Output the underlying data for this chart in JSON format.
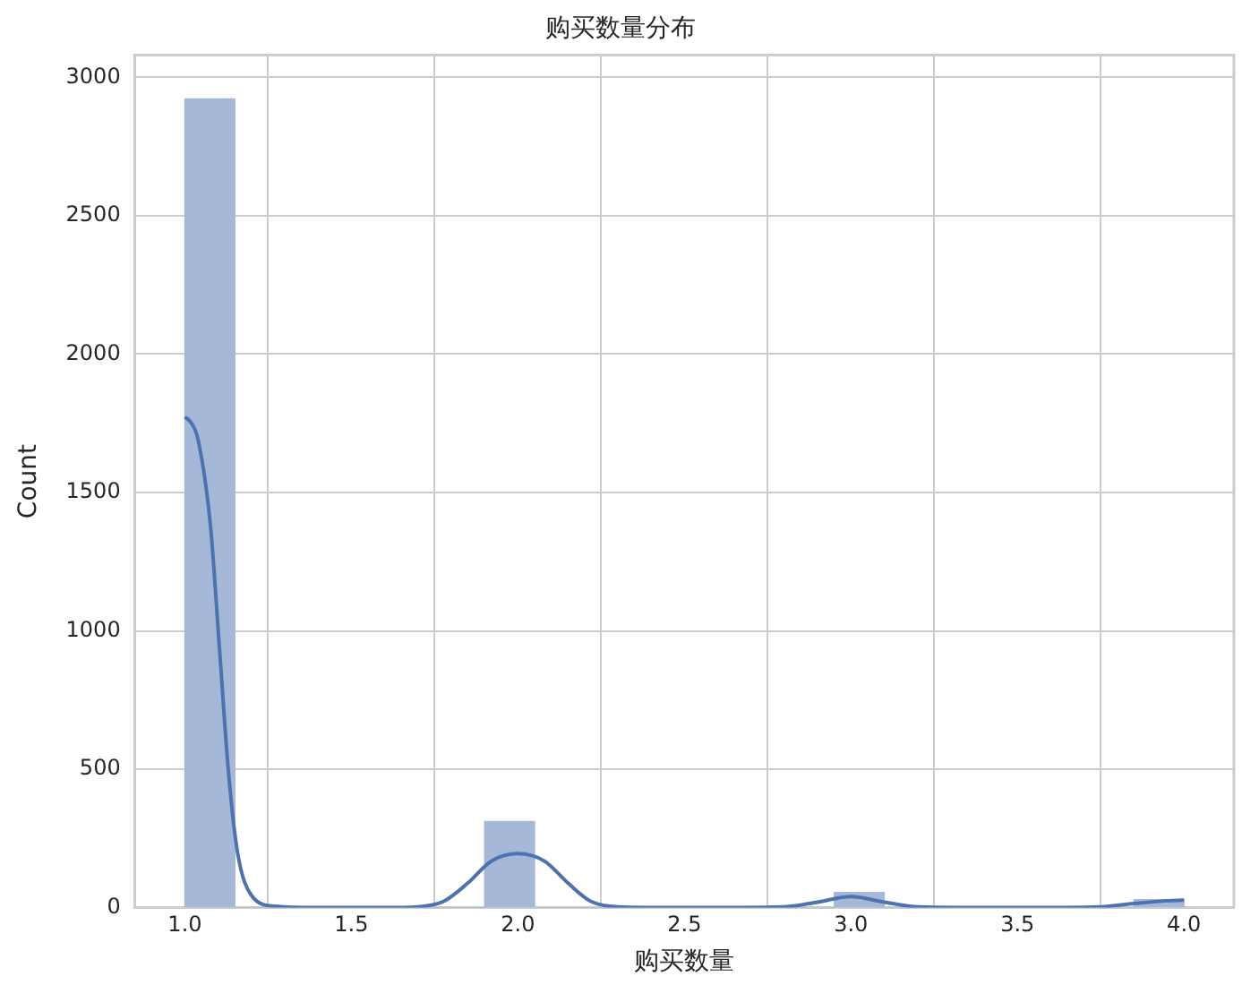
{
  "chart_data": {
    "type": "histogram",
    "title": "购买数量分布",
    "xlabel": "购买数量",
    "ylabel": "Count",
    "bins": [
      1.0,
      1.15,
      1.3,
      1.45,
      1.6,
      1.75,
      1.9,
      2.05,
      2.2,
      2.35,
      2.5,
      2.65,
      2.8,
      2.95,
      3.1,
      3.25,
      3.4,
      3.55,
      3.7,
      3.85,
      4.0
    ],
    "series": [
      {
        "color": "#a5b8d8",
        "values": [
          2922,
          0,
          0,
          0,
          0,
          0,
          311,
          0,
          0,
          0,
          0,
          0,
          0,
          55,
          0,
          0,
          0,
          0,
          0,
          29
        ]
      },
      {
        "type": "line",
        "color": "#4c72b0",
        "x": [
          1.0,
          1.02,
          1.04,
          1.077,
          1.104,
          1.131,
          1.158,
          1.2,
          1.27,
          1.4,
          1.6,
          1.7,
          1.776,
          1.85,
          1.92,
          2.0,
          2.08,
          2.15,
          2.22,
          2.3,
          2.5,
          2.8,
          2.9,
          3.0,
          3.1,
          3.2,
          3.5,
          3.75,
          3.85,
          3.95,
          4.0
        ],
        "values": [
          1773,
          1750,
          1689,
          1378,
          934,
          489,
          200,
          44,
          5,
          0,
          0,
          3,
          22,
          89,
          168,
          195,
          168,
          89,
          22,
          3,
          0,
          3,
          20,
          40,
          20,
          3,
          0,
          3,
          15,
          25,
          27
        ]
      }
    ],
    "xlim": [
      0.85,
      4.15
    ],
    "xticks": [
      {
        "value": 1,
        "label": "1.0"
      },
      {
        "value": 1.5,
        "label": "1.5"
      },
      {
        "value": 2,
        "label": "2.0"
      },
      {
        "value": 2.5,
        "label": "2.5"
      },
      {
        "value": 3,
        "label": "3.0"
      },
      {
        "value": 3.5,
        "label": "3.5"
      },
      {
        "value": 4,
        "label": "4.0"
      }
    ],
    "ylim": [
      0,
      3080
    ],
    "yticks": [
      0,
      500,
      1000,
      1500,
      2000,
      2500,
      3000
    ],
    "grid": true,
    "legend": false,
    "marker": "none",
    "line_style": "solid"
  }
}
